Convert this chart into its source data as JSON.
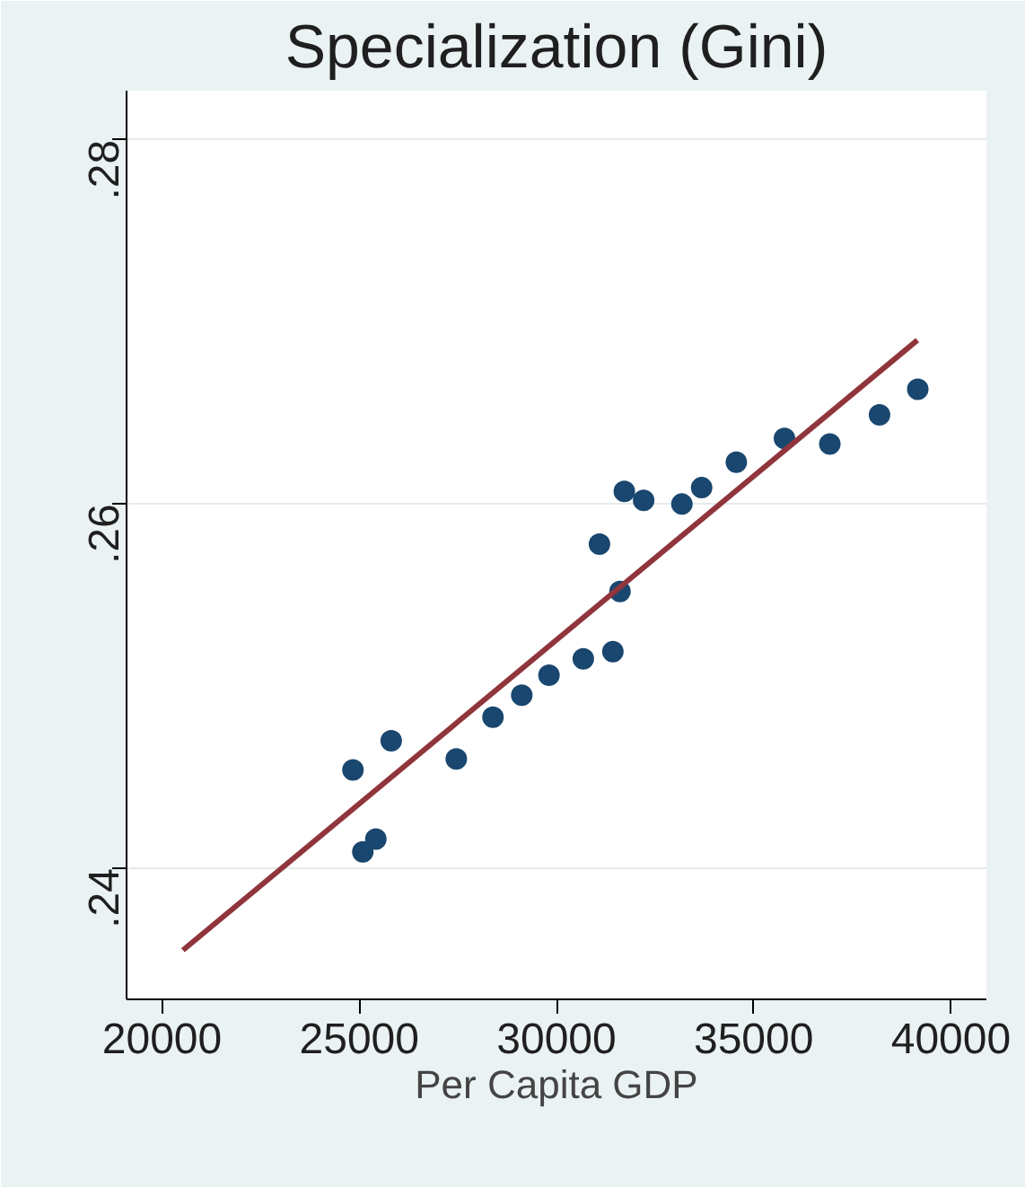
{
  "chart_data": {
    "type": "scatter",
    "title": "Specialization (Gini)",
    "xlabel": "Per Capita GDP",
    "xlim": [
      19100,
      40900
    ],
    "ylim": [
      0.2328,
      0.2827
    ],
    "xticks": [
      20000,
      25000,
      30000,
      35000,
      40000
    ],
    "yticks": [
      {
        "value": 0.24,
        "label": ".24"
      },
      {
        "value": 0.26,
        "label": ".26"
      },
      {
        "value": 0.28,
        "label": ".28"
      }
    ],
    "grid": "y",
    "series": [
      {
        "marker": "circle",
        "color": "#1a476f",
        "x": [
          24840,
          25090,
          25420,
          25810,
          27460,
          28390,
          29120,
          29810,
          30680,
          31430,
          31090,
          31610,
          31720,
          32210,
          33180,
          33680,
          34560,
          35780,
          36930,
          38190,
          39160
        ],
        "values": [
          0.2454,
          0.2409,
          0.2416,
          0.247,
          0.246,
          0.2483,
          0.2495,
          0.2506,
          0.2515,
          0.2519,
          0.2578,
          0.2552,
          0.2607,
          0.2602,
          0.26,
          0.2609,
          0.2623,
          0.2636,
          0.2633,
          0.2649,
          0.2663
        ]
      },
      {
        "type": "line",
        "color": "#90353b",
        "line_style": "solid",
        "x": [
          20530,
          39150
        ],
        "values": [
          0.2355,
          0.269
        ]
      }
    ]
  }
}
